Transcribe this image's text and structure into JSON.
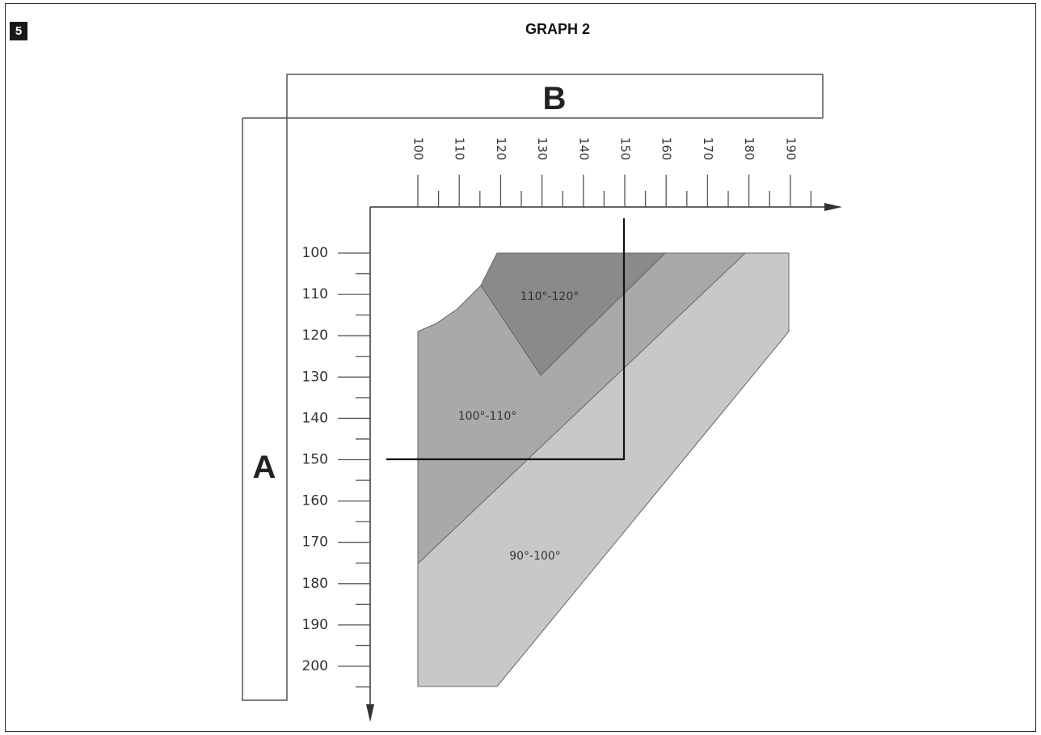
{
  "figure_number": "5",
  "title": "GRAPH 2",
  "axis_b": {
    "label": "B",
    "ticks": [
      "100",
      "110",
      "120",
      "130",
      "140",
      "150",
      "160",
      "170",
      "180",
      "190"
    ]
  },
  "axis_a": {
    "label": "A",
    "ticks": [
      "100",
      "110",
      "120",
      "130",
      "140",
      "150",
      "160",
      "170",
      "180",
      "190",
      "200"
    ]
  },
  "zones": [
    {
      "label": "110°-120°",
      "color": "#8a8a8a"
    },
    {
      "label": "100°-110°",
      "color": "#a9a9a9"
    },
    {
      "label": "90°-100°",
      "color": "#c8c8c8"
    }
  ],
  "example": {
    "a": 150,
    "b": 150
  }
}
